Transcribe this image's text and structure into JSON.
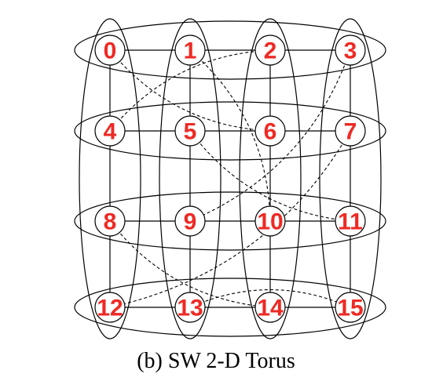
{
  "diagram": {
    "caption": "(b) SW 2-D Torus",
    "label_color": "#ee2a24",
    "line_color": "#000000",
    "nodes": [
      "0",
      "1",
      "2",
      "3",
      "4",
      "5",
      "6",
      "7",
      "8",
      "9",
      "10",
      "11",
      "12",
      "13",
      "14",
      "15"
    ],
    "grid": {
      "rows": 4,
      "cols": 4
    },
    "shortcut_links": [
      [
        "0",
        "6"
      ],
      [
        "1",
        "10"
      ],
      [
        "2",
        "4"
      ],
      [
        "3",
        "9"
      ],
      [
        "5",
        "11"
      ],
      [
        "7",
        "12"
      ],
      [
        "8",
        "14"
      ],
      [
        "13",
        "15"
      ]
    ]
  }
}
